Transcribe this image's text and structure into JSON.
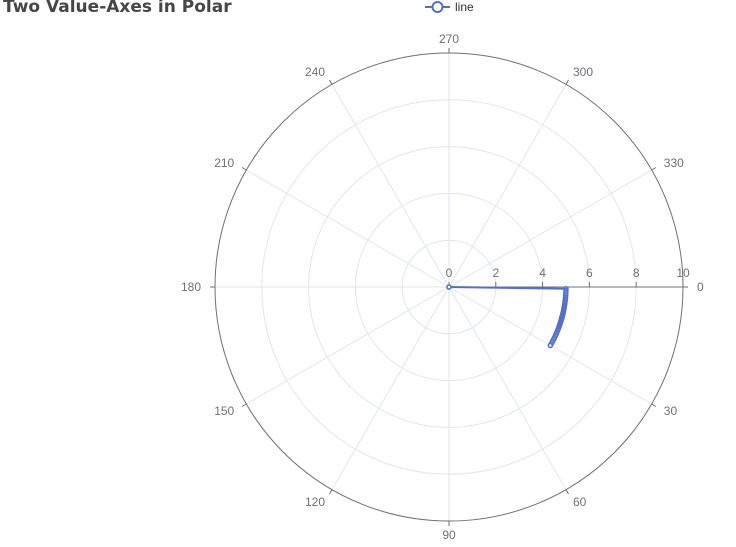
{
  "chart_data": {
    "type": "line",
    "coordinate_system": "polar",
    "title": "Two Value-Axes in Polar",
    "legend": {
      "position": "top-center",
      "entries": [
        "line"
      ]
    },
    "angle_axis": {
      "type": "value",
      "min": 0,
      "max": 360,
      "direction": "clockwise",
      "start_angle": 0,
      "tick_labels": [
        "0",
        "30",
        "60",
        "90",
        "120",
        "150",
        "180",
        "210",
        "240",
        "270",
        "300",
        "330"
      ]
    },
    "radius_axis": {
      "type": "value",
      "min": 0,
      "max": 10,
      "tick_labels": [
        "0",
        "2",
        "4",
        "6",
        "8",
        "10"
      ]
    },
    "grid": true,
    "series": [
      {
        "name": "line",
        "color": "#5470c6",
        "points": [
          [
            0.0,
            0
          ],
          [
            5.0,
            0.87
          ],
          [
            5.0,
            1.74
          ],
          [
            5.0,
            2.6
          ],
          [
            5.0,
            3.45
          ],
          [
            5.0,
            4.29
          ],
          [
            5.0,
            5.12
          ],
          [
            5.0,
            5.92
          ],
          [
            5.0,
            6.71
          ],
          [
            5.0,
            7.48
          ],
          [
            5.0,
            8.22
          ],
          [
            5.0,
            8.93
          ],
          [
            5.0,
            9.62
          ],
          [
            5.0,
            10.28
          ],
          [
            5.0,
            10.9
          ],
          [
            5.0,
            11.48
          ],
          [
            5.0,
            12.02
          ],
          [
            5.0,
            12.53
          ],
          [
            5.0,
            12.99
          ],
          [
            5.0,
            13.41
          ],
          [
            5.0,
            13.77
          ],
          [
            5.0,
            14.1
          ],
          [
            5.0,
            14.38
          ],
          [
            5.0,
            14.6
          ],
          [
            5.0,
            14.77
          ],
          [
            5.0,
            14.89
          ],
          [
            5.0,
            14.96
          ],
          [
            5.0,
            15.0
          ],
          [
            5.0,
            15.04
          ],
          [
            5.0,
            15.11
          ],
          [
            5.0,
            15.23
          ],
          [
            5.0,
            15.4
          ],
          [
            5.0,
            15.62
          ],
          [
            5.0,
            15.9
          ],
          [
            5.0,
            16.23
          ],
          [
            5.0,
            16.59
          ],
          [
            5.0,
            17.01
          ],
          [
            5.0,
            17.47
          ],
          [
            5.0,
            17.98
          ],
          [
            5.0,
            18.52
          ],
          [
            5.0,
            19.1
          ],
          [
            5.0,
            19.72
          ],
          [
            5.0,
            20.38
          ],
          [
            5.0,
            21.07
          ],
          [
            5.0,
            21.78
          ],
          [
            5.0,
            22.52
          ],
          [
            5.0,
            23.29
          ],
          [
            5.0,
            24.08
          ],
          [
            5.0,
            24.88
          ],
          [
            5.0,
            25.71
          ],
          [
            5.0,
            26.55
          ],
          [
            5.0,
            27.4
          ],
          [
            5.0,
            28.26
          ],
          [
            5.0,
            29.13
          ],
          [
            5.0,
            30.0
          ]
        ]
      }
    ]
  }
}
